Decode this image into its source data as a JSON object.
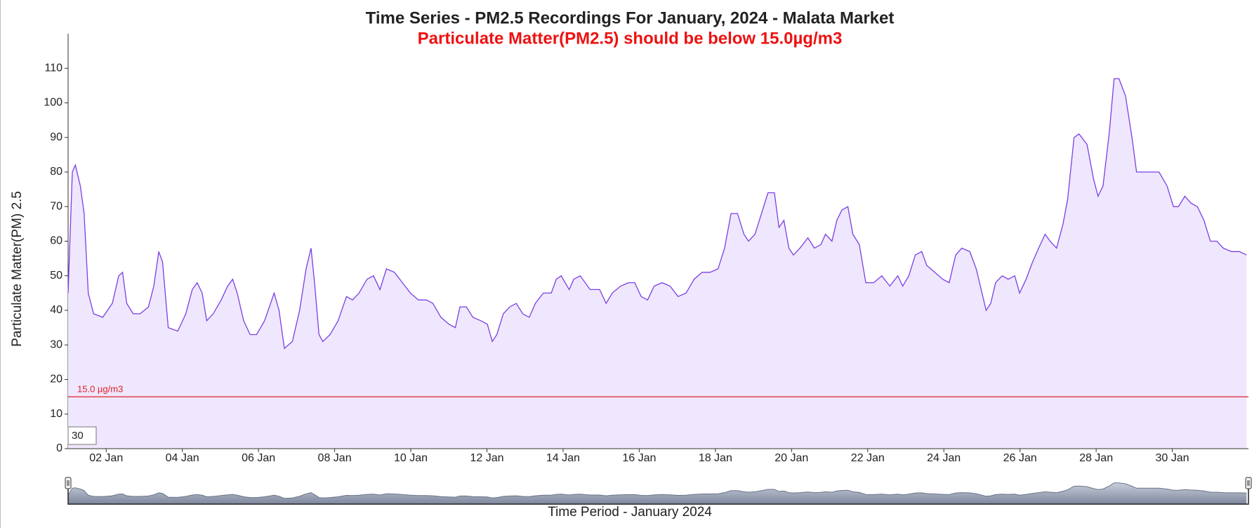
{
  "chart_data": {
    "type": "line",
    "title": "Time Series - PM2.5 Recordings For January, 2024 - Malata Market",
    "subtitle": "Particulate Matter(PM2.5) should be below 15.0µg/m3",
    "y_label": "Particulate Matter(PM) 2.5",
    "x_label": "Time Period - January 2024",
    "color": "#7b3fe4",
    "fill": "#efe7fd",
    "threshold": {
      "value": 15,
      "label": "15.0 µg/m3",
      "color": "#e0202a"
    },
    "xlim": [
      1,
      32
    ],
    "xticks": [
      {
        "value": 2,
        "label": "02 Jan"
      },
      {
        "value": 4,
        "label": "04 Jan"
      },
      {
        "value": 6,
        "label": "06 Jan"
      },
      {
        "value": 8,
        "label": "08 Jan"
      },
      {
        "value": 10,
        "label": "10 Jan"
      },
      {
        "value": 12,
        "label": "12 Jan"
      },
      {
        "value": 14,
        "label": "14 Jan"
      },
      {
        "value": 16,
        "label": "16 Jan"
      },
      {
        "value": 18,
        "label": "18 Jan"
      },
      {
        "value": 20,
        "label": "20 Jan"
      },
      {
        "value": 22,
        "label": "22 Jan"
      },
      {
        "value": 24,
        "label": "24 Jan"
      },
      {
        "value": 26,
        "label": "26 Jan"
      },
      {
        "value": 28,
        "label": "28 Jan"
      },
      {
        "value": 30,
        "label": "30 Jan"
      }
    ],
    "ylim": [
      0,
      120
    ],
    "yticks": [
      0,
      10,
      20,
      30,
      40,
      50,
      60,
      70,
      80,
      90,
      100,
      110
    ],
    "x": [
      1.0,
      1.11,
      1.19,
      1.32,
      1.42,
      1.53,
      1.67,
      1.91,
      2.16,
      2.33,
      2.43,
      2.54,
      2.71,
      2.89,
      3.11,
      3.25,
      3.38,
      3.48,
      3.63,
      3.88,
      4.09,
      4.26,
      4.39,
      4.52,
      4.64,
      4.81,
      5.02,
      5.19,
      5.32,
      5.44,
      5.61,
      5.78,
      5.95,
      6.16,
      6.41,
      6.54,
      6.68,
      6.89,
      7.08,
      7.25,
      7.38,
      7.48,
      7.59,
      7.69,
      7.88,
      8.09,
      8.31,
      8.47,
      8.64,
      8.85,
      9.02,
      9.19,
      9.36,
      9.57,
      9.78,
      9.99,
      10.2,
      10.41,
      10.58,
      10.79,
      11.0,
      11.17,
      11.29,
      11.46,
      11.63,
      11.84,
      12.01,
      12.14,
      12.26,
      12.43,
      12.6,
      12.77,
      12.94,
      13.11,
      13.27,
      13.48,
      13.69,
      13.82,
      13.95,
      14.16,
      14.28,
      14.45,
      14.71,
      14.96,
      15.13,
      15.29,
      15.51,
      15.72,
      15.88,
      16.05,
      16.22,
      16.39,
      16.6,
      16.81,
      17.02,
      17.23,
      17.44,
      17.65,
      17.86,
      18.07,
      18.24,
      18.41,
      18.58,
      18.75,
      18.87,
      19.04,
      19.21,
      19.38,
      19.55,
      19.67,
      19.8,
      19.93,
      20.05,
      20.22,
      20.43,
      20.6,
      20.77,
      20.89,
      21.06,
      21.19,
      21.32,
      21.48,
      21.61,
      21.78,
      21.95,
      22.16,
      22.37,
      22.58,
      22.79,
      22.92,
      23.08,
      23.25,
      23.42,
      23.55,
      23.76,
      23.97,
      24.14,
      24.31,
      24.47,
      24.68,
      24.85,
      24.98,
      25.11,
      25.23,
      25.36,
      25.53,
      25.69,
      25.86,
      25.99,
      26.16,
      26.33,
      26.49,
      26.66,
      26.79,
      26.96,
      27.13,
      27.25,
      27.42,
      27.55,
      27.76,
      27.93,
      28.05,
      28.18,
      28.35,
      28.47,
      28.6,
      28.77,
      28.94,
      29.06,
      29.23,
      29.44,
      29.65,
      29.86,
      30.03,
      30.16,
      30.33,
      30.49,
      30.66,
      30.83,
      31.0,
      31.17,
      31.34,
      31.55,
      31.76,
      31.95
    ],
    "values": [
      45,
      80,
      82,
      76,
      68,
      45,
      39,
      38,
      42,
      50,
      51,
      42,
      39,
      39,
      41,
      47,
      57,
      54,
      35,
      34,
      39,
      46,
      48,
      45,
      37,
      39,
      43,
      47,
      49,
      45,
      37,
      33,
      33,
      37,
      45,
      40,
      29,
      31,
      40,
      52,
      58,
      47,
      33,
      31,
      33,
      37,
      44,
      43,
      45,
      49,
      50,
      46,
      52,
      51,
      48,
      45,
      43,
      43,
      42,
      38,
      36,
      35,
      41,
      41,
      38,
      37,
      36,
      31,
      33,
      39,
      41,
      42,
      39,
      38,
      42,
      45,
      45,
      49,
      50,
      46,
      49,
      50,
      46,
      46,
      42,
      45,
      47,
      48,
      48,
      44,
      43,
      47,
      48,
      47,
      44,
      45,
      49,
      51,
      51,
      52,
      58,
      68,
      68,
      62,
      60,
      62,
      68,
      74,
      74,
      64,
      66,
      58,
      56,
      58,
      61,
      58,
      59,
      62,
      60,
      66,
      69,
      70,
      62,
      59,
      48,
      48,
      50,
      47,
      50,
      47,
      50,
      56,
      57,
      53,
      51,
      49,
      48,
      56,
      58,
      57,
      52,
      46,
      40,
      42,
      48,
      50,
      49,
      50,
      45,
      49,
      54,
      58,
      62,
      60,
      58,
      65,
      72,
      90,
      91,
      88,
      78,
      73,
      76,
      92,
      107,
      107,
      102,
      90,
      80,
      80,
      80,
      80,
      76,
      70,
      70,
      73,
      71,
      70,
      66,
      60,
      60,
      58,
      57,
      57,
      56
    ]
  },
  "controls": {
    "period_input": "30"
  }
}
